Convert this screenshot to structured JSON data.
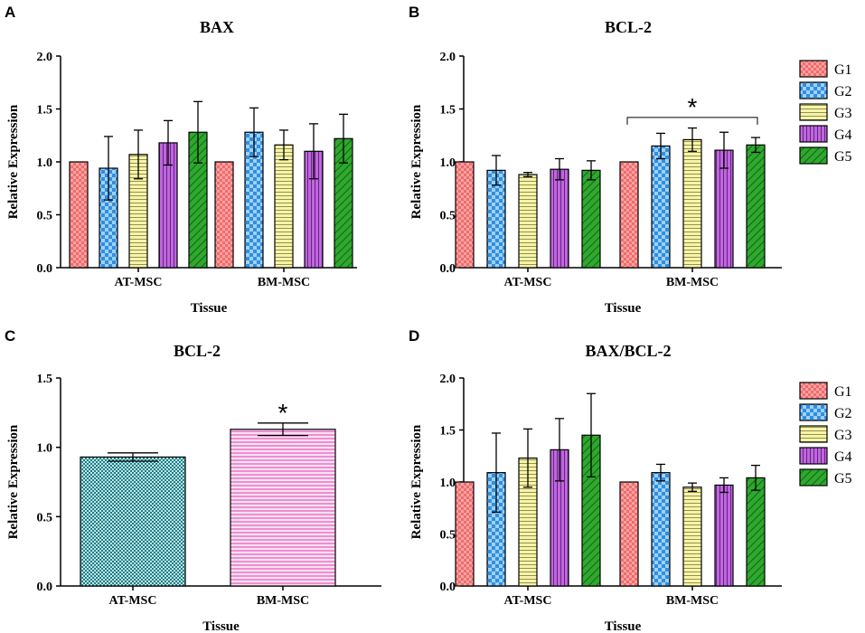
{
  "colors": {
    "G1": "#f26b6b",
    "G2": "#2f8fe0",
    "G3": "#f5f29a",
    "G4": "#b552d6",
    "G5": "#2ea82e",
    "at_msc": "#2aa7b0",
    "bm_msc": "#f47ad2"
  },
  "chart_data": [
    {
      "panel": "A",
      "type": "bar",
      "title": "BAX",
      "xlabel": "Tissue",
      "ylabel": "Relative Expression",
      "categories": [
        "AT-MSC",
        "BM-MSC"
      ],
      "ylim": [
        0,
        2.0
      ],
      "yticks": [
        "0.0",
        "0.5",
        "1.0",
        "1.5",
        "2.0"
      ],
      "series": [
        {
          "name": "G1",
          "values": [
            1.0,
            1.0
          ],
          "errors": [
            0,
            0
          ]
        },
        {
          "name": "G2",
          "values": [
            0.94,
            1.28
          ],
          "errors": [
            0.3,
            0.23
          ]
        },
        {
          "name": "G3",
          "values": [
            1.07,
            1.16
          ],
          "errors": [
            0.23,
            0.14
          ]
        },
        {
          "name": "G4",
          "values": [
            1.18,
            1.1
          ],
          "errors": [
            0.21,
            0.26
          ]
        },
        {
          "name": "G5",
          "values": [
            1.28,
            1.22
          ],
          "errors": [
            0.29,
            0.23
          ]
        }
      ],
      "annotations": []
    },
    {
      "panel": "B",
      "type": "bar",
      "title": "BCL-2",
      "xlabel": "Tissue",
      "ylabel": "Relative Expression",
      "categories": [
        "AT-MSC",
        "BM-MSC"
      ],
      "ylim": [
        0,
        2.0
      ],
      "yticks": [
        "0.0",
        "0.5",
        "1.0",
        "1.5",
        "2.0"
      ],
      "series": [
        {
          "name": "G1",
          "values": [
            1.0,
            1.0
          ],
          "errors": [
            0,
            0
          ]
        },
        {
          "name": "G2",
          "values": [
            0.92,
            1.15
          ],
          "errors": [
            0.14,
            0.12
          ]
        },
        {
          "name": "G3",
          "values": [
            0.88,
            1.21
          ],
          "errors": [
            0.02,
            0.11
          ]
        },
        {
          "name": "G4",
          "values": [
            0.93,
            1.11
          ],
          "errors": [
            0.1,
            0.17
          ]
        },
        {
          "name": "G5",
          "values": [
            0.92,
            1.16
          ],
          "errors": [
            0.09,
            0.07
          ]
        }
      ],
      "legend": [
        "G1",
        "G2",
        "G3",
        "G4",
        "G5"
      ],
      "annotations": [
        {
          "text": "*",
          "bracket_over": "BM-MSC",
          "level": 1.42
        }
      ]
    },
    {
      "panel": "C",
      "type": "bar",
      "title": "BCL-2",
      "xlabel": "Tissue",
      "ylabel": "Relative Expression",
      "categories": [
        "AT-MSC",
        "BM-MSC"
      ],
      "ylim": [
        0,
        1.5
      ],
      "yticks": [
        "0.0",
        "0.5",
        "1.0",
        "1.5"
      ],
      "values": [
        0.93,
        1.13
      ],
      "errors": [
        0.03,
        0.045
      ],
      "annotations": [
        {
          "text": "*",
          "over": "BM-MSC"
        }
      ]
    },
    {
      "panel": "D",
      "type": "bar",
      "title": "BAX/BCL-2",
      "xlabel": "Tissue",
      "ylabel": "Relative Expression",
      "categories": [
        "AT-MSC",
        "BM-MSC"
      ],
      "ylim": [
        0,
        2.0
      ],
      "yticks": [
        "0.0",
        "0.5",
        "1.0",
        "1.5",
        "2.0"
      ],
      "series": [
        {
          "name": "G1",
          "values": [
            1.0,
            1.0
          ],
          "errors": [
            0,
            0
          ]
        },
        {
          "name": "G2",
          "values": [
            1.09,
            1.09
          ],
          "errors": [
            0.38,
            0.08
          ]
        },
        {
          "name": "G3",
          "values": [
            1.23,
            0.95
          ],
          "errors": [
            0.28,
            0.04
          ]
        },
        {
          "name": "G4",
          "values": [
            1.31,
            0.97
          ],
          "errors": [
            0.3,
            0.07
          ]
        },
        {
          "name": "G5",
          "values": [
            1.45,
            1.04
          ],
          "errors": [
            0.4,
            0.12
          ]
        }
      ],
      "legend": [
        "G1",
        "G2",
        "G3",
        "G4",
        "G5"
      ],
      "annotations": []
    }
  ]
}
